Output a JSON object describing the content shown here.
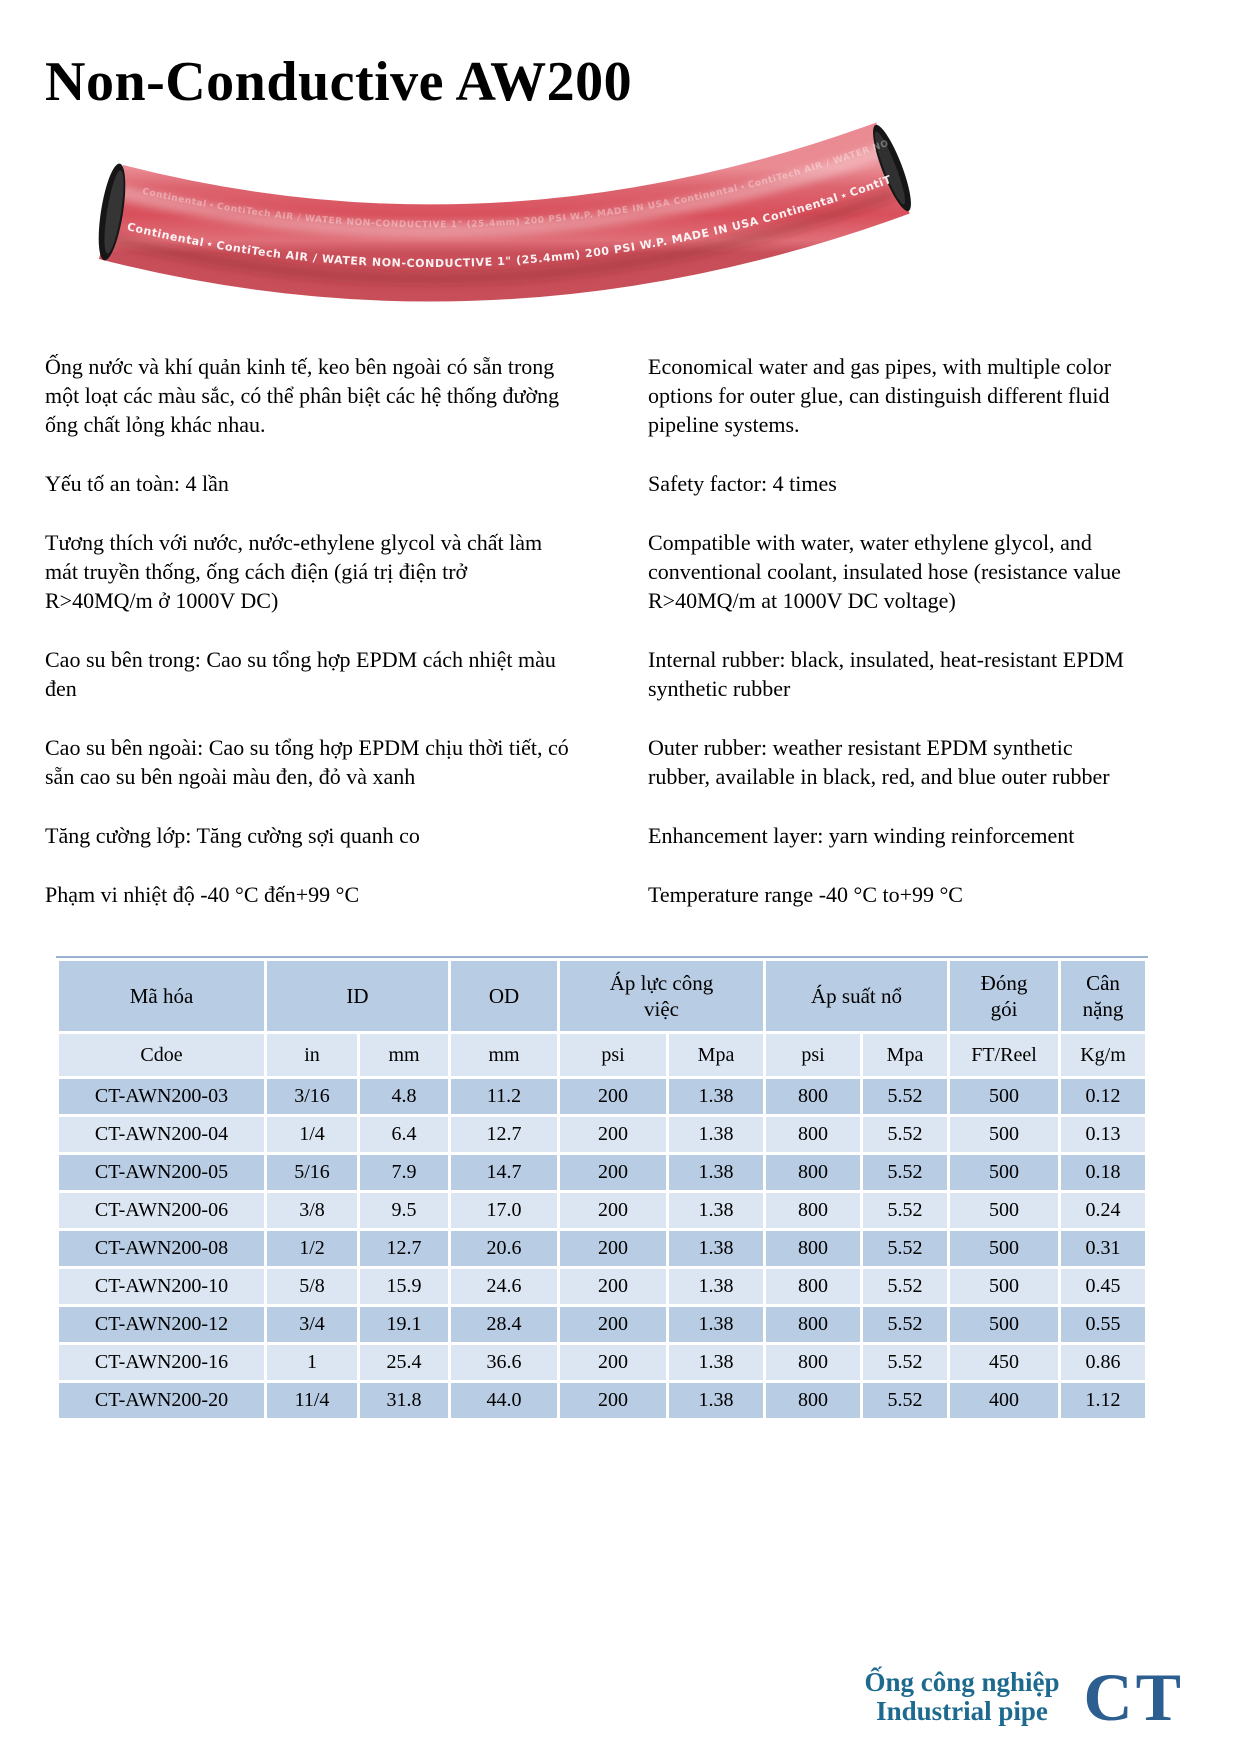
{
  "page": {
    "title": "Non-Conductive AW200"
  },
  "hose": {
    "brand": "Continental",
    "cobrand": "ContiTech",
    "print_text": "AIR / WATER NON-CONDUCTIVE  1\" (25.4mm) 200 PSI W.P. MADE IN USA",
    "body_color": "#d95560",
    "end_color": "#1c1c1c"
  },
  "description": {
    "vietnamese": [
      "Ống nước và khí quản kinh tế, keo bên ngoài có sẵn trong một loạt các màu sắc, có thể phân biệt các hệ thống đường ống chất lỏng khác nhau.",
      "Yếu tố an toàn: 4 lần",
      "Tương thích với nước, nước-ethylene glycol và chất làm mát truyền thống, ống cách điện (giá trị điện trở R>40MQ/m ở 1000V DC)",
      "Cao su bên trong: Cao su tổng hợp EPDM cách nhiệt màu đen",
      "Cao su bên ngoài: Cao su tổng hợp EPDM chịu thời tiết, có sẵn cao su bên ngoài màu đen, đỏ và xanh",
      "Tăng cường lớp: Tăng cường sợi quanh co",
      "Phạm vi nhiệt độ -40 °C đến+99 °C"
    ],
    "english": [
      "Economical water and gas pipes, with multiple color options for outer glue, can distinguish different fluid pipeline systems.",
      "Safety factor: 4 times",
      "Compatible with water, water ethylene glycol, and conventional coolant, insulated hose (resistance value R>40MQ/m at 1000V DC voltage)",
      "Internal rubber: black, insulated, heat-resistant EPDM synthetic rubber",
      "Outer rubber: weather resistant EPDM synthetic rubber, available in black, red, and blue outer rubber",
      "Enhancement layer: yarn winding reinforcement",
      "Temperature range -40 °C to+99 °C"
    ]
  },
  "spec_table": {
    "header_groups": [
      {
        "label": "Mã hóa",
        "span": 1
      },
      {
        "label": "ID",
        "span": 2
      },
      {
        "label": "OD",
        "span": 1
      },
      {
        "label": "Áp lực công\nviệc",
        "span": 2
      },
      {
        "label": "Áp suất nổ",
        "span": 2
      },
      {
        "label": "Đóng\ngói",
        "span": 1
      },
      {
        "label": "Cân\nnặng",
        "span": 1
      }
    ],
    "unit_row": [
      "Cdoe",
      "in",
      "mm",
      "mm",
      "psi",
      "Mpa",
      "psi",
      "Mpa",
      "FT/Reel",
      "Kg/m"
    ],
    "rows": [
      [
        "CT-AWN200-03",
        "3/16",
        "4.8",
        "11.2",
        "200",
        "1.38",
        "800",
        "5.52",
        "500",
        "0.12"
      ],
      [
        "CT-AWN200-04",
        "1/4",
        "6.4",
        "12.7",
        "200",
        "1.38",
        "800",
        "5.52",
        "500",
        "0.13"
      ],
      [
        "CT-AWN200-05",
        "5/16",
        "7.9",
        "14.7",
        "200",
        "1.38",
        "800",
        "5.52",
        "500",
        "0.18"
      ],
      [
        "CT-AWN200-06",
        "3/8",
        "9.5",
        "17.0",
        "200",
        "1.38",
        "800",
        "5.52",
        "500",
        "0.24"
      ],
      [
        "CT-AWN200-08",
        "1/2",
        "12.7",
        "20.6",
        "200",
        "1.38",
        "800",
        "5.52",
        "500",
        "0.31"
      ],
      [
        "CT-AWN200-10",
        "5/8",
        "15.9",
        "24.6",
        "200",
        "1.38",
        "800",
        "5.52",
        "500",
        "0.45"
      ],
      [
        "CT-AWN200-12",
        "3/4",
        "19.1",
        "28.4",
        "200",
        "1.38",
        "800",
        "5.52",
        "500",
        "0.55"
      ],
      [
        "CT-AWN200-16",
        "1",
        "25.4",
        "36.6",
        "200",
        "1.38",
        "800",
        "5.52",
        "450",
        "0.86"
      ],
      [
        "CT-AWN200-20",
        "11/4",
        "31.8",
        "44.0",
        "200",
        "1.38",
        "800",
        "5.52",
        "400",
        "1.12"
      ]
    ],
    "colors": {
      "header_bg": "#b8cce4",
      "row_dark": "#b8cce4",
      "row_light": "#dce6f2"
    }
  },
  "footer": {
    "line1": "Ống công nghiệp",
    "line2": "Industrial pipe",
    "logo": "CT",
    "text_color": "#1e6a8f",
    "logo_color": "#2c5f90"
  }
}
